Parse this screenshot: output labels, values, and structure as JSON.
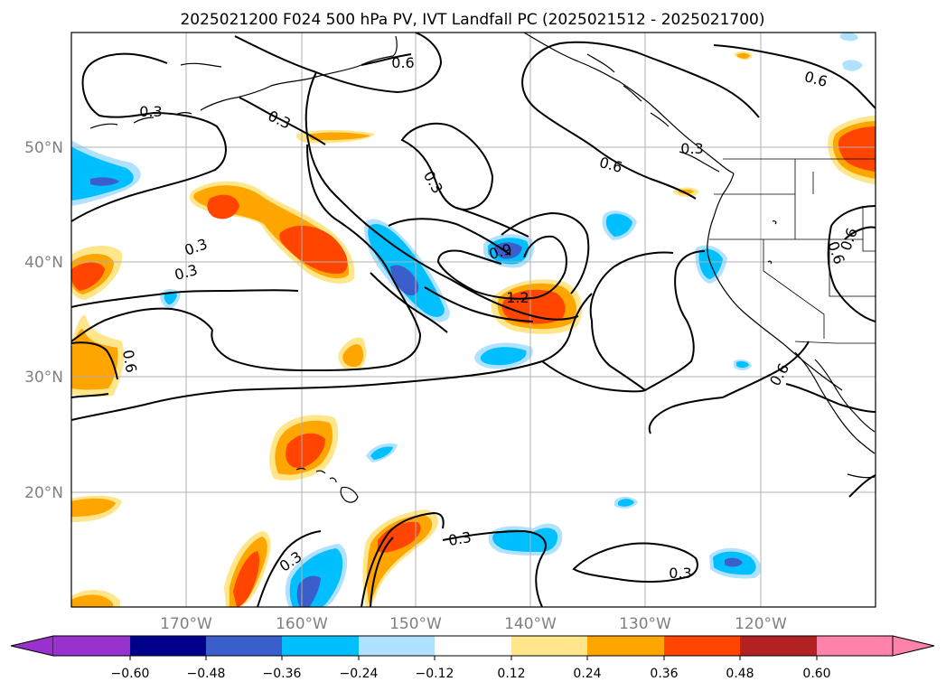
{
  "title": "2025021200 F024 500 hPa PV, IVT Landfall PC (2025021512 - 2025021700)",
  "lon_labels": [
    "170°W",
    "160°W",
    "150°W",
    "140°W",
    "130°W",
    "120°W"
  ],
  "lat_labels": [
    "50°N",
    "40°N",
    "30°N",
    "20°N"
  ],
  "contour_labels": [
    "0.3",
    "0.3",
    "0.6",
    "0.6",
    "0.3",
    "0.6",
    "0.3",
    "0.3",
    "0.3",
    "0.9",
    "1.2",
    "0.6",
    "0.6",
    "0.3",
    "0.3",
    "0.3",
    "0.6",
    "0.6"
  ],
  "colorbar": {
    "ticks": [
      "−0.60",
      "−0.48",
      "−0.36",
      "−0.24",
      "−0.12",
      "0.12",
      "0.24",
      "0.36",
      "0.48",
      "0.60"
    ],
    "colors": [
      "#9932cc",
      "#00008b",
      "#3a5fcd",
      "#00bfff",
      "#b0e2ff",
      "#ffffff",
      "#ffe68a",
      "#ffa500",
      "#ff4500",
      "#b22222",
      "#ff82ab"
    ]
  },
  "fill_colors": {
    "light_blue": "#b0e2ff",
    "blue": "#00bfff",
    "dark_blue": "#3a5fcd",
    "light_yellow": "#ffe68a",
    "orange": "#ffa500",
    "red_orange": "#ff4500",
    "dark_red": "#b22222"
  }
}
